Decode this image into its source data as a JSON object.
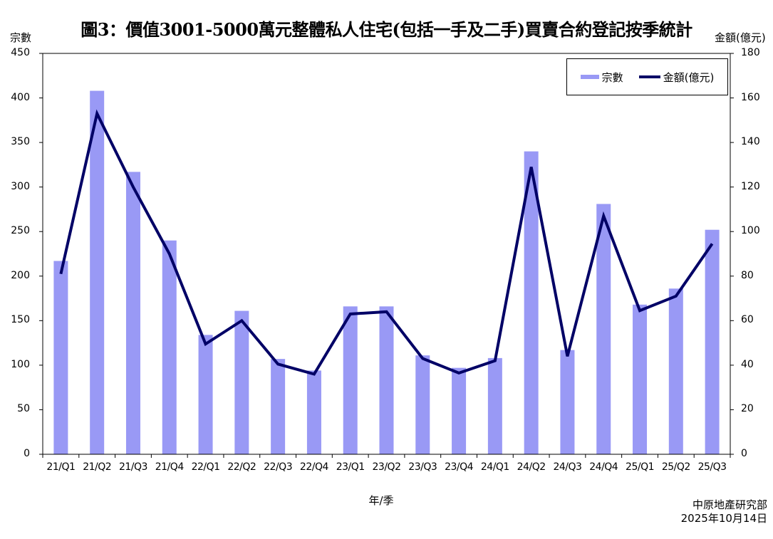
{
  "chart_data": {
    "type": "bar",
    "title": "圖3：價值3001-5000萬元整體私人住宅(包括一手及二手)買賣合約登記按季統計",
    "xlabel": "年/季",
    "ylabel": "宗數",
    "y2label": "金額(億元)",
    "ylim": [
      0,
      450
    ],
    "y2lim": [
      0,
      180
    ],
    "yticks": [
      0,
      50,
      100,
      150,
      200,
      250,
      300,
      350,
      400,
      450
    ],
    "y2ticks": [
      0,
      20,
      40,
      60,
      80,
      100,
      120,
      140,
      160,
      180
    ],
    "grid": false,
    "legend_position": "top-right",
    "categories": [
      "21/Q1",
      "21/Q2",
      "21/Q3",
      "21/Q4",
      "22/Q1",
      "22/Q2",
      "22/Q3",
      "22/Q4",
      "23/Q1",
      "23/Q2",
      "23/Q3",
      "23/Q4",
      "24/Q1",
      "24/Q2",
      "24/Q3",
      "24/Q4",
      "25/Q1",
      "25/Q2",
      "25/Q3"
    ],
    "series": [
      {
        "name": "宗數",
        "type": "bar",
        "axis": "left",
        "color": "#9999f5",
        "values": [
          217,
          408,
          317,
          240,
          134,
          161,
          107,
          94,
          166,
          166,
          111,
          97,
          108,
          340,
          117,
          281,
          168,
          186,
          252
        ]
      },
      {
        "name": "金額(億元)",
        "type": "line",
        "axis": "right",
        "color": "#000066",
        "values": [
          81,
          153,
          120,
          90,
          49.5,
          60,
          40.5,
          36,
          63,
          64,
          43,
          36.5,
          42,
          129,
          44,
          107,
          64.5,
          71,
          94.5
        ]
      }
    ],
    "source": "中原地產研究部",
    "date": "2025年10月14日"
  },
  "labels": {
    "title": "圖3：價值3001-5000萬元整體私人住宅(包括一手及二手)買賣合約登記按季統計",
    "left_axis_title": "宗數",
    "right_axis_title": "金額(億元)",
    "xlabel": "年/季",
    "legend_bar": "宗數",
    "legend_line": "金額(億元)",
    "source": "中原地產研究部",
    "date": "2025年10月14日"
  }
}
